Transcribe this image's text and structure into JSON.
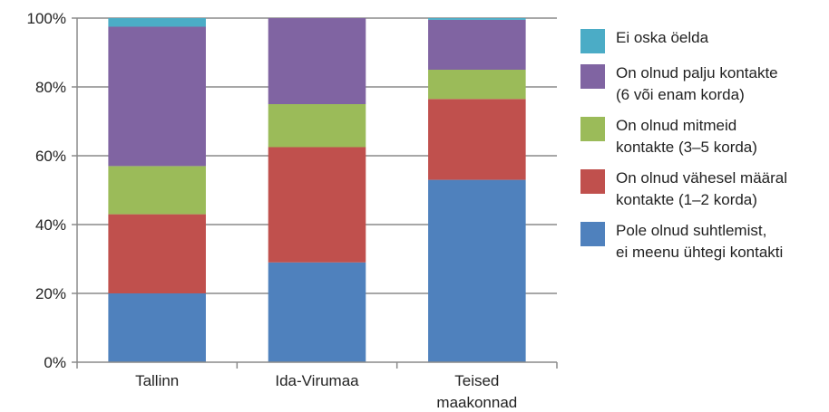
{
  "chart_data": {
    "type": "bar",
    "stacked": true,
    "categories": [
      "Tallinn",
      "Ida-Virumaa",
      "Teised\nmaakonnad"
    ],
    "ylim": [
      0,
      100
    ],
    "yticks": [
      "0%",
      "20%",
      "40%",
      "60%",
      "80%",
      "100%"
    ],
    "grid": true,
    "legend_position": "right",
    "series": [
      {
        "name": "Pole olnud suhtlemist,\nei meenu ühtegi kontakti",
        "color": "#4F81BD",
        "values": [
          20,
          29,
          53
        ]
      },
      {
        "name": "On olnud vähesel määral\nkontakte (1–2 korda)",
        "color": "#C0504D",
        "values": [
          23,
          33.5,
          23.5
        ]
      },
      {
        "name": "On olnud mitmeid\nkontakte (3–5 korda)",
        "color": "#9BBB59",
        "values": [
          14,
          12.5,
          8.5
        ]
      },
      {
        "name": "On olnud palju kontakte\n(6 või enam korda)",
        "color": "#8064A2",
        "values": [
          40.5,
          25,
          14.5
        ]
      },
      {
        "name": "Ei oska öelda",
        "color": "#4BACC6",
        "values": [
          2.5,
          0,
          0.5
        ]
      }
    ]
  }
}
